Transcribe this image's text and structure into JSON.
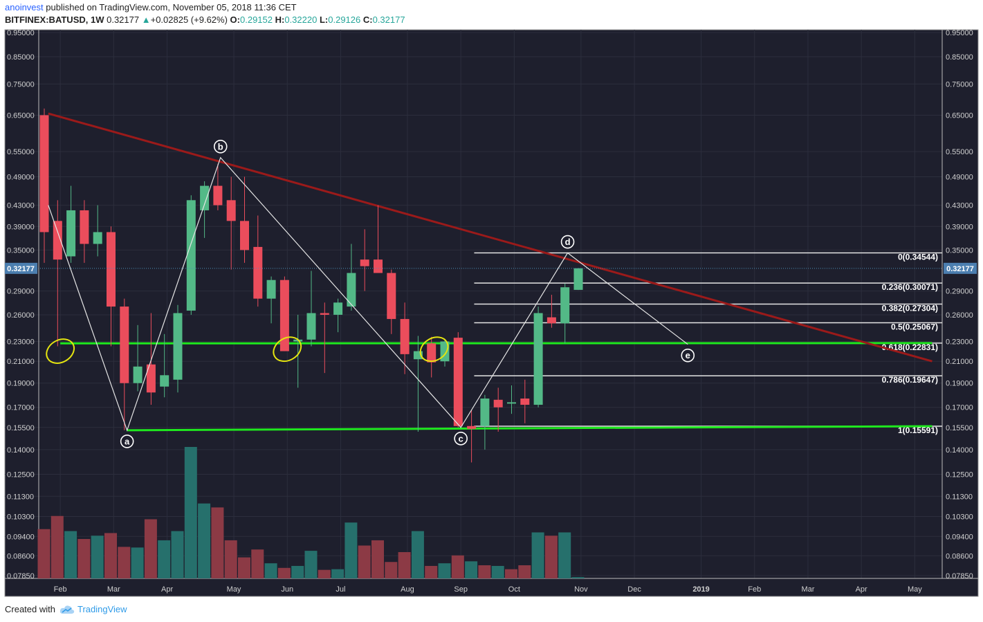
{
  "header": {
    "author": "anoinvest",
    "published": "published on TradingView.com, November 05, 2018 11:36 CET",
    "symbol": "BITFINEX:BATUSD, 1W",
    "last": "0.32177",
    "change_arrow": "▲",
    "change": "+0.02825 (+9.62%)",
    "open_label": "O:",
    "open": "0.29152",
    "high_label": "H:",
    "high": "0.32220",
    "low_label": "L:",
    "low": "0.29126",
    "close_label": "C:",
    "close": "0.32177"
  },
  "footer": {
    "created_with": "Created with",
    "brand": "TradingView",
    "brand_icon": "tradingview-cloud-icon"
  },
  "colors": {
    "background": "#1e1f2d",
    "grid": "#2c2e3d",
    "up": "#53b987",
    "down": "#eb4d5c",
    "vol_up": "#26706c",
    "vol_down": "#8c3a45",
    "trendline": "#9b1a1a",
    "support": "#1ee81e",
    "fib": "#e6e6e6",
    "wave": "#e6e6e6",
    "ellipse": "#e5e510",
    "price_label_bg": "#4c7fb0"
  },
  "chart_data": {
    "type": "candlestick",
    "title": "BITFINEX:BATUSD, 1W",
    "scale": "log",
    "ylim": [
      0.0785,
      0.95
    ],
    "y_ticks": [
      "0.95000",
      "0.85000",
      "0.75000",
      "0.65000",
      "0.55000",
      "0.49000",
      "0.43000",
      "0.39000",
      "0.35000",
      "0.29000",
      "0.26000",
      "0.23000",
      "0.21000",
      "0.19000",
      "0.17000",
      "0.15500",
      "0.14000",
      "0.12500",
      "0.11300",
      "0.10300",
      "0.09400",
      "0.08600",
      "0.07850"
    ],
    "x_labels": [
      {
        "label": "Feb",
        "week": 1.2
      },
      {
        "label": "Mar",
        "week": 5.2
      },
      {
        "label": "Apr",
        "week": 9.2
      },
      {
        "label": "May",
        "week": 14.2
      },
      {
        "label": "Jun",
        "week": 18.2
      },
      {
        "label": "Jul",
        "week": 22.2
      },
      {
        "label": "Aug",
        "week": 27.2
      },
      {
        "label": "Sep",
        "week": 31.2
      },
      {
        "label": "Oct",
        "week": 35.2
      },
      {
        "label": "Nov",
        "week": 40.2
      },
      {
        "label": "Dec",
        "week": 44.2
      },
      {
        "label": "2019",
        "week": 49.2
      },
      {
        "label": "Feb",
        "week": 53.2
      },
      {
        "label": "Mar",
        "week": 57.2
      },
      {
        "label": "Apr",
        "week": 61.2
      },
      {
        "label": "May",
        "week": 65.2
      }
    ],
    "current_price": "0.32177",
    "candles": [
      {
        "o": 0.65,
        "h": 0.67,
        "l": 0.33,
        "c": 0.38
      },
      {
        "o": 0.4,
        "h": 0.44,
        "l": 0.225,
        "c": 0.335
      },
      {
        "o": 0.34,
        "h": 0.47,
        "l": 0.33,
        "c": 0.42
      },
      {
        "o": 0.42,
        "h": 0.44,
        "l": 0.33,
        "c": 0.36
      },
      {
        "o": 0.36,
        "h": 0.43,
        "l": 0.34,
        "c": 0.38
      },
      {
        "o": 0.38,
        "h": 0.39,
        "l": 0.225,
        "c": 0.27
      },
      {
        "o": 0.27,
        "h": 0.28,
        "l": 0.153,
        "c": 0.19
      },
      {
        "o": 0.19,
        "h": 0.248,
        "l": 0.183,
        "c": 0.205
      },
      {
        "o": 0.207,
        "h": 0.262,
        "l": 0.172,
        "c": 0.182
      },
      {
        "o": 0.187,
        "h": 0.238,
        "l": 0.178,
        "c": 0.197
      },
      {
        "o": 0.193,
        "h": 0.272,
        "l": 0.182,
        "c": 0.262
      },
      {
        "o": 0.265,
        "h": 0.45,
        "l": 0.26,
        "c": 0.44
      },
      {
        "o": 0.42,
        "h": 0.48,
        "l": 0.37,
        "c": 0.47
      },
      {
        "o": 0.47,
        "h": 0.52,
        "l": 0.42,
        "c": 0.43
      },
      {
        "o": 0.44,
        "h": 0.49,
        "l": 0.32,
        "c": 0.4
      },
      {
        "o": 0.4,
        "h": 0.49,
        "l": 0.33,
        "c": 0.35
      },
      {
        "o": 0.355,
        "h": 0.41,
        "l": 0.27,
        "c": 0.28
      },
      {
        "o": 0.28,
        "h": 0.31,
        "l": 0.25,
        "c": 0.305
      },
      {
        "o": 0.305,
        "h": 0.31,
        "l": 0.22,
        "c": 0.22
      },
      {
        "o": 0.23,
        "h": 0.26,
        "l": 0.186,
        "c": 0.232
      },
      {
        "o": 0.232,
        "h": 0.318,
        "l": 0.225,
        "c": 0.262
      },
      {
        "o": 0.262,
        "h": 0.275,
        "l": 0.199,
        "c": 0.26
      },
      {
        "o": 0.26,
        "h": 0.28,
        "l": 0.24,
        "c": 0.275
      },
      {
        "o": 0.27,
        "h": 0.36,
        "l": 0.265,
        "c": 0.315
      },
      {
        "o": 0.335,
        "h": 0.385,
        "l": 0.29,
        "c": 0.325
      },
      {
        "o": 0.335,
        "h": 0.43,
        "l": 0.315,
        "c": 0.315
      },
      {
        "o": 0.315,
        "h": 0.32,
        "l": 0.238,
        "c": 0.255
      },
      {
        "o": 0.255,
        "h": 0.275,
        "l": 0.198,
        "c": 0.217
      },
      {
        "o": 0.212,
        "h": 0.236,
        "l": 0.152,
        "c": 0.22
      },
      {
        "o": 0.228,
        "h": 0.235,
        "l": 0.195,
        "c": 0.209
      },
      {
        "o": 0.21,
        "h": 0.233,
        "l": 0.205,
        "c": 0.23
      },
      {
        "o": 0.234,
        "h": 0.24,
        "l": 0.155,
        "c": 0.156
      },
      {
        "o": 0.156,
        "h": 0.168,
        "l": 0.132,
        "c": 0.154
      },
      {
        "o": 0.156,
        "h": 0.18,
        "l": 0.14,
        "c": 0.177
      },
      {
        "o": 0.176,
        "h": 0.186,
        "l": 0.152,
        "c": 0.17
      },
      {
        "o": 0.174,
        "h": 0.188,
        "l": 0.165,
        "c": 0.174
      },
      {
        "o": 0.177,
        "h": 0.193,
        "l": 0.158,
        "c": 0.172
      },
      {
        "o": 0.172,
        "h": 0.27,
        "l": 0.17,
        "c": 0.262
      },
      {
        "o": 0.257,
        "h": 0.285,
        "l": 0.245,
        "c": 0.25
      },
      {
        "o": 0.25,
        "h": 0.3,
        "l": 0.228,
        "c": 0.295
      },
      {
        "o": 0.2915,
        "h": 0.3222,
        "l": 0.2913,
        "c": 0.3218
      }
    ],
    "volume": [
      {
        "v": 0.75,
        "up": false
      },
      {
        "v": 0.95,
        "up": false
      },
      {
        "v": 0.72,
        "up": true
      },
      {
        "v": 0.6,
        "up": false
      },
      {
        "v": 0.65,
        "up": true
      },
      {
        "v": 0.69,
        "up": false
      },
      {
        "v": 0.48,
        "up": false
      },
      {
        "v": 0.47,
        "up": true
      },
      {
        "v": 0.9,
        "up": false
      },
      {
        "v": 0.58,
        "up": true
      },
      {
        "v": 0.72,
        "up": true
      },
      {
        "v": 2.0,
        "up": true
      },
      {
        "v": 1.14,
        "up": true
      },
      {
        "v": 1.08,
        "up": false
      },
      {
        "v": 0.58,
        "up": false
      },
      {
        "v": 0.32,
        "up": false
      },
      {
        "v": 0.44,
        "up": false
      },
      {
        "v": 0.23,
        "up": true
      },
      {
        "v": 0.16,
        "up": false
      },
      {
        "v": 0.19,
        "up": true
      },
      {
        "v": 0.42,
        "up": true
      },
      {
        "v": 0.13,
        "up": false
      },
      {
        "v": 0.14,
        "up": true
      },
      {
        "v": 0.85,
        "up": true
      },
      {
        "v": 0.5,
        "up": false
      },
      {
        "v": 0.58,
        "up": false
      },
      {
        "v": 0.25,
        "up": false
      },
      {
        "v": 0.4,
        "up": false
      },
      {
        "v": 0.72,
        "up": true
      },
      {
        "v": 0.19,
        "up": false
      },
      {
        "v": 0.23,
        "up": true
      },
      {
        "v": 0.35,
        "up": false
      },
      {
        "v": 0.26,
        "up": true
      },
      {
        "v": 0.2,
        "up": false
      },
      {
        "v": 0.19,
        "up": true
      },
      {
        "v": 0.14,
        "up": false
      },
      {
        "v": 0.2,
        "up": false
      },
      {
        "v": 0.7,
        "up": true
      },
      {
        "v": 0.65,
        "up": false
      },
      {
        "v": 0.7,
        "up": true
      },
      {
        "v": 0.02,
        "up": true
      }
    ],
    "trendline": {
      "from": {
        "week": 0.3,
        "price": 0.655
      },
      "to": {
        "week": 66.5,
        "price": 0.21
      }
    },
    "support_lines": [
      {
        "from": {
          "week": 1.2,
          "price": 0.228
        },
        "to": {
          "week": 66.5,
          "price": 0.2283
        }
      },
      {
        "from": {
          "week": 6.2,
          "price": 0.153
        },
        "to": {
          "week": 66.5,
          "price": 0.1559
        }
      }
    ],
    "waves": [
      {
        "label": "a",
        "week": 6.2,
        "price": 0.153,
        "label_pos": "below"
      },
      {
        "label": "b",
        "week": 13.2,
        "price": 0.535,
        "label_pos": "above"
      },
      {
        "label": "c",
        "week": 31.2,
        "price": 0.155,
        "label_pos": "below"
      },
      {
        "label": "d",
        "week": 39.2,
        "price": 0.3454,
        "label_pos": "above"
      },
      {
        "label": "e",
        "week": 48.2,
        "price": 0.227,
        "label_pos": "below"
      }
    ],
    "wave_path": [
      {
        "week": 0.3,
        "price": 0.43
      },
      {
        "week": 6.2,
        "price": 0.153
      },
      {
        "week": 13.2,
        "price": 0.535
      },
      {
        "week": 31.2,
        "price": 0.155
      },
      {
        "week": 39.2,
        "price": 0.3454
      },
      {
        "week": 48.2,
        "price": 0.227
      }
    ],
    "fib_start_week": 32.2,
    "fib_levels": [
      {
        "label": "0(0.34544)",
        "price": 0.34544
      },
      {
        "label": "0.236(0.30071)",
        "price": 0.30071
      },
      {
        "label": "0.382(0.27304)",
        "price": 0.27304
      },
      {
        "label": "0.5(0.25067)",
        "price": 0.25067
      },
      {
        "label": "0.618(0.22831)",
        "price": 0.22831
      },
      {
        "label": "0.786(0.19647)",
        "price": 0.19647
      },
      {
        "label": "1(0.15591)",
        "price": 0.15591
      }
    ],
    "ellipses": [
      {
        "week": 1.2,
        "price": 0.22
      },
      {
        "week": 18.2,
        "price": 0.222
      },
      {
        "week": 29.2,
        "price": 0.222
      }
    ]
  }
}
